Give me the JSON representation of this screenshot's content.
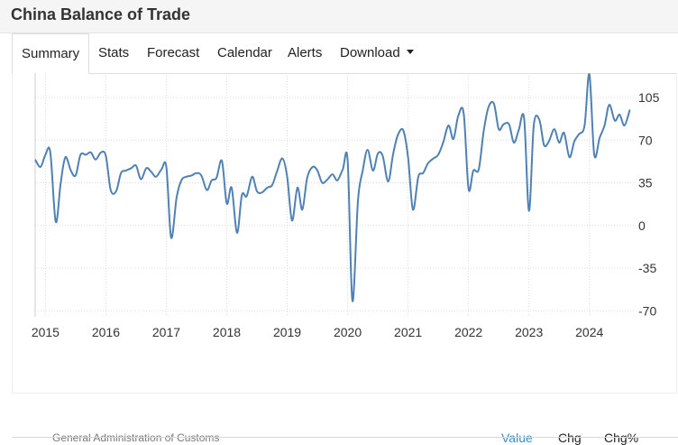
{
  "header": {
    "title": "China Balance of Trade"
  },
  "tabs": [
    {
      "label": "Summary",
      "active": true
    },
    {
      "label": "Stats"
    },
    {
      "label": "Forecast"
    },
    {
      "label": "Calendar"
    },
    {
      "label": "Alerts"
    },
    {
      "label": "Download",
      "has_dropdown": true
    }
  ],
  "footer": {
    "source": "General Administration of Customs",
    "views": [
      "Value",
      "Chg",
      "Chg%"
    ],
    "active_view": "Value"
  },
  "colors": {
    "line": "#4f81b3",
    "active_view": "#3a8dc6",
    "grid": "#dcdcdc"
  },
  "chart_data": {
    "type": "line",
    "title": "China Balance of Trade",
    "xlabel": "",
    "ylabel": "",
    "ylim": [
      -75,
      125
    ],
    "xlim": [
      2014.83,
      2024.75
    ],
    "y_ticks": [
      -70,
      -35,
      0,
      35,
      70,
      105
    ],
    "x_ticks": [
      "2015",
      "2016",
      "2017",
      "2018",
      "2019",
      "2020",
      "2021",
      "2022",
      "2023",
      "2024"
    ],
    "grid": true,
    "y_axis_side": "right",
    "series": [
      {
        "name": "Balance of Trade",
        "points": [
          [
            2014.83,
            54
          ],
          [
            2014.92,
            48
          ],
          [
            2015.0,
            58
          ],
          [
            2015.08,
            60
          ],
          [
            2015.17,
            3
          ],
          [
            2015.25,
            34
          ],
          [
            2015.33,
            56
          ],
          [
            2015.42,
            45
          ],
          [
            2015.5,
            41
          ],
          [
            2015.58,
            58
          ],
          [
            2015.67,
            58
          ],
          [
            2015.75,
            60
          ],
          [
            2015.83,
            54
          ],
          [
            2015.92,
            60
          ],
          [
            2016.0,
            57
          ],
          [
            2016.08,
            29
          ],
          [
            2016.17,
            28
          ],
          [
            2016.25,
            43
          ],
          [
            2016.33,
            45
          ],
          [
            2016.42,
            47
          ],
          [
            2016.5,
            49
          ],
          [
            2016.58,
            38
          ],
          [
            2016.67,
            47
          ],
          [
            2016.75,
            44
          ],
          [
            2016.83,
            40
          ],
          [
            2016.92,
            46
          ],
          [
            2017.0,
            48
          ],
          [
            2017.08,
            -10
          ],
          [
            2017.17,
            23
          ],
          [
            2017.25,
            37
          ],
          [
            2017.33,
            40
          ],
          [
            2017.42,
            41
          ],
          [
            2017.5,
            43
          ],
          [
            2017.58,
            41
          ],
          [
            2017.67,
            29
          ],
          [
            2017.75,
            37
          ],
          [
            2017.83,
            39
          ],
          [
            2017.92,
            53
          ],
          [
            2018.0,
            18
          ],
          [
            2018.08,
            31
          ],
          [
            2018.17,
            -6
          ],
          [
            2018.25,
            25
          ],
          [
            2018.33,
            24
          ],
          [
            2018.42,
            40
          ],
          [
            2018.5,
            28
          ],
          [
            2018.58,
            27
          ],
          [
            2018.67,
            31
          ],
          [
            2018.75,
            33
          ],
          [
            2018.83,
            44
          ],
          [
            2018.92,
            55
          ],
          [
            2019.0,
            40
          ],
          [
            2019.08,
            4
          ],
          [
            2019.17,
            31
          ],
          [
            2019.25,
            13
          ],
          [
            2019.33,
            39
          ],
          [
            2019.42,
            48
          ],
          [
            2019.5,
            45
          ],
          [
            2019.58,
            35
          ],
          [
            2019.67,
            38
          ],
          [
            2019.75,
            42
          ],
          [
            2019.83,
            37
          ],
          [
            2019.92,
            46
          ],
          [
            2020.0,
            53
          ],
          [
            2020.08,
            -62
          ],
          [
            2020.17,
            20
          ],
          [
            2020.25,
            45
          ],
          [
            2020.33,
            62
          ],
          [
            2020.42,
            45
          ],
          [
            2020.5,
            59
          ],
          [
            2020.58,
            57
          ],
          [
            2020.67,
            36
          ],
          [
            2020.75,
            58
          ],
          [
            2020.83,
            74
          ],
          [
            2020.92,
            78
          ],
          [
            2021.0,
            56
          ],
          [
            2021.08,
            13
          ],
          [
            2021.17,
            40
          ],
          [
            2021.25,
            43
          ],
          [
            2021.33,
            51
          ],
          [
            2021.42,
            55
          ],
          [
            2021.5,
            58
          ],
          [
            2021.58,
            68
          ],
          [
            2021.67,
            82
          ],
          [
            2021.75,
            71
          ],
          [
            2021.83,
            90
          ],
          [
            2021.92,
            92
          ],
          [
            2022.0,
            30
          ],
          [
            2022.08,
            45
          ],
          [
            2022.17,
            46
          ],
          [
            2022.25,
            77
          ],
          [
            2022.33,
            97
          ],
          [
            2022.42,
            100
          ],
          [
            2022.5,
            79
          ],
          [
            2022.58,
            83
          ],
          [
            2022.67,
            83
          ],
          [
            2022.75,
            68
          ],
          [
            2022.83,
            78
          ],
          [
            2022.92,
            88
          ],
          [
            2023.0,
            12
          ],
          [
            2023.08,
            82
          ],
          [
            2023.17,
            87
          ],
          [
            2023.25,
            66
          ],
          [
            2023.33,
            69
          ],
          [
            2023.42,
            79
          ],
          [
            2023.5,
            68
          ],
          [
            2023.58,
            76
          ],
          [
            2023.67,
            56
          ],
          [
            2023.75,
            69
          ],
          [
            2023.83,
            75
          ],
          [
            2023.92,
            82
          ],
          [
            2024.0,
            124
          ],
          [
            2024.08,
            58
          ],
          [
            2024.17,
            72
          ],
          [
            2024.25,
            82
          ],
          [
            2024.33,
            99
          ],
          [
            2024.42,
            86
          ],
          [
            2024.5,
            91
          ],
          [
            2024.58,
            82
          ],
          [
            2024.67,
            95
          ]
        ]
      }
    ]
  }
}
